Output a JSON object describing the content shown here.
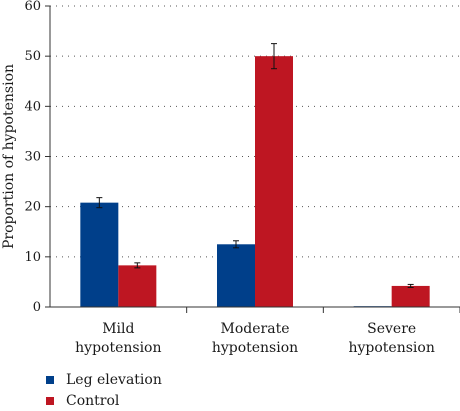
{
  "chart_data": {
    "type": "bar",
    "categories": [
      "Mild\nhypotension",
      "Moderate\nhypotension",
      "Severe\nhypotension"
    ],
    "series": [
      {
        "name": "Leg elevation",
        "color": "#003f8a",
        "values": [
          20.8,
          12.5,
          0.1
        ],
        "errors": [
          1.0,
          0.7,
          0
        ]
      },
      {
        "name": "Control",
        "color": "#be1622",
        "values": [
          8.3,
          50.0,
          4.2
        ],
        "errors": [
          0.5,
          2.5,
          0.3
        ]
      }
    ],
    "title": "",
    "xlabel": "",
    "ylabel": "Proportion of hypotension",
    "ylim": [
      0,
      60
    ],
    "yticks": [
      0,
      10,
      20,
      30,
      40,
      50,
      60
    ],
    "grid": "horizontal-dotted",
    "legend_position": "bottom-left"
  }
}
